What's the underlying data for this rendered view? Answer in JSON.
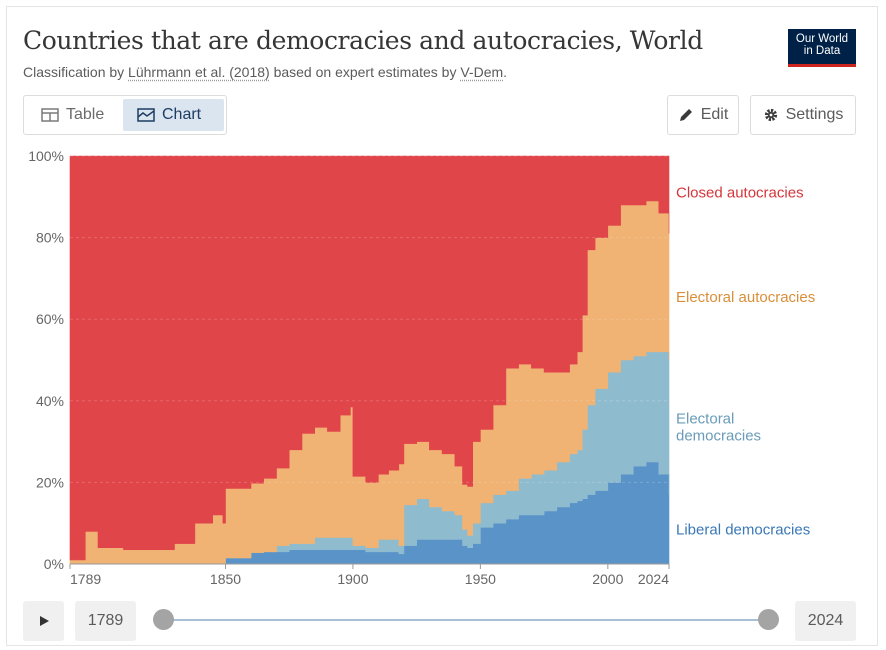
{
  "title": "Countries that are democracies and autocracies, World",
  "subtitle": {
    "prefix": "Classification by ",
    "link1": "Lührmann et al. (2018)",
    "middle": " based on expert estimates by ",
    "link2": "V-Dem",
    "suffix": "."
  },
  "logo": {
    "line1": "Our World",
    "line2": "in Data"
  },
  "tabs": {
    "table": "Table",
    "chart": "Chart"
  },
  "buttons": {
    "edit": "Edit",
    "settings": "Settings"
  },
  "timeline": {
    "start": "1789",
    "end": "2024"
  },
  "colors": {
    "liberal": "#5a93c8",
    "electoral_dem": "#8fbbcf",
    "electoral_auto": "#f0b373",
    "closed": "#e0454a",
    "label_liberal": "#3a78b6",
    "label_electoral_dem": "#6a9cba",
    "label_electoral_auto": "#d98f3a",
    "label_closed": "#d4363b"
  },
  "chart_data": {
    "type": "area",
    "stacked": true,
    "normalized": true,
    "xlim": [
      1789,
      2024
    ],
    "ylim": [
      0,
      100
    ],
    "yticks": [
      "0%",
      "20%",
      "40%",
      "60%",
      "80%",
      "100%"
    ],
    "xticks": [
      "1789",
      "1850",
      "1900",
      "1950",
      "2000",
      "2024"
    ],
    "x": [
      1789,
      1795,
      1800,
      1810,
      1820,
      1830,
      1838,
      1845,
      1849,
      1850,
      1855,
      1860,
      1865,
      1870,
      1875,
      1880,
      1885,
      1890,
      1895,
      1899,
      1900,
      1905,
      1910,
      1914,
      1918,
      1920,
      1925,
      1930,
      1935,
      1940,
      1943,
      1945,
      1947,
      1950,
      1955,
      1960,
      1965,
      1970,
      1975,
      1980,
      1985,
      1988,
      1990,
      1992,
      1995,
      2000,
      2005,
      2010,
      2015,
      2020,
      2024
    ],
    "series": [
      {
        "name": "Liberal democracies",
        "values": [
          0,
          0,
          0,
          0,
          0,
          0,
          0,
          0,
          0,
          1.5,
          1.5,
          2.8,
          3,
          3,
          3.5,
          3.5,
          3.5,
          3.5,
          3.5,
          3.5,
          3.5,
          3,
          3,
          3,
          2.5,
          4.5,
          6,
          6,
          6,
          6,
          4.5,
          4,
          5,
          9,
          10,
          11,
          12,
          12,
          13,
          14,
          15,
          15.5,
          16,
          17,
          18,
          20,
          22,
          24,
          25,
          22,
          17
        ]
      },
      {
        "name": "Electoral democracies",
        "values": [
          0,
          0,
          0,
          0,
          0,
          0,
          0,
          0,
          0,
          0,
          0,
          0,
          0,
          1.5,
          1.5,
          1.5,
          3,
          3,
          3,
          3,
          1,
          1,
          3,
          3,
          2,
          10,
          10,
          8,
          7,
          6,
          4,
          3,
          5,
          6,
          7,
          7,
          9,
          10,
          10,
          11,
          12,
          12.5,
          17,
          22,
          25,
          27,
          28,
          27,
          27,
          30,
          33
        ]
      },
      {
        "name": "Electoral autocracies",
        "values": [
          1,
          8,
          4,
          3.5,
          3.5,
          5,
          10,
          12,
          10,
          17,
          17,
          17,
          18,
          19,
          23,
          27,
          27,
          26,
          30,
          32,
          17,
          16,
          16,
          17,
          20,
          15,
          14,
          14,
          14,
          12,
          11,
          12,
          20,
          18,
          22,
          30,
          28,
          26,
          24,
          22,
          22,
          24,
          28,
          38,
          37,
          36,
          38,
          37,
          37,
          34,
          31
        ]
      },
      {
        "name": "Closed autocracies",
        "values": [
          99,
          92,
          96,
          96.5,
          96.5,
          95,
          90,
          88,
          90,
          81.5,
          81.5,
          80.2,
          79,
          76.5,
          72,
          68,
          66.5,
          67.5,
          63.5,
          61.5,
          78.5,
          80,
          78,
          77,
          75.5,
          70.5,
          70,
          72,
          73,
          76,
          80.5,
          81,
          70,
          67,
          61,
          52,
          51,
          52,
          53,
          53,
          51,
          48,
          39,
          23,
          20,
          17,
          12,
          12,
          11,
          14,
          19
        ]
      }
    ]
  }
}
